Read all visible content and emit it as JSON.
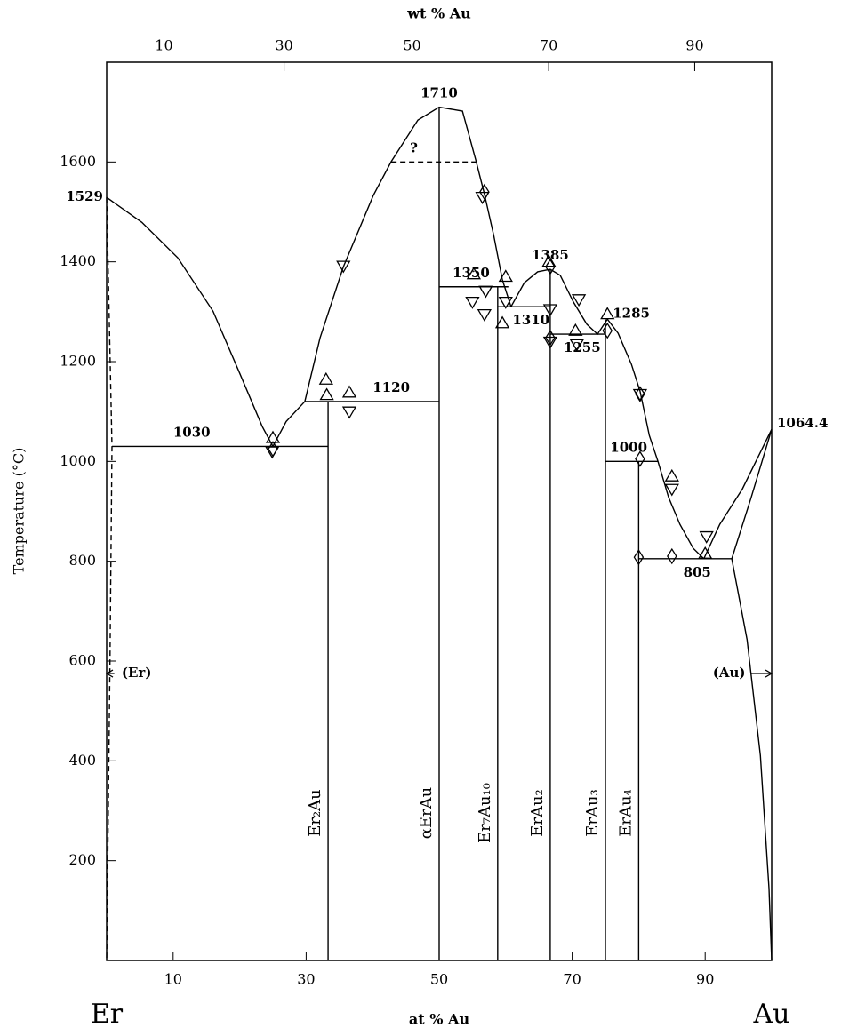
{
  "chart_data": {
    "type": "phase-diagram",
    "x_label": "at % Au",
    "x2_label": "wt % Au",
    "y_label": "Temperature (°C)",
    "left_element": "Er",
    "right_element": "Au",
    "xlim": [
      0,
      100
    ],
    "ylim": [
      0,
      1800
    ],
    "xticks": [
      10,
      30,
      50,
      70,
      90
    ],
    "x2ticks": [
      10,
      30,
      50,
      70,
      90
    ],
    "yticks": [
      200,
      400,
      600,
      800,
      1000,
      1200,
      1400,
      1600
    ],
    "color": "#000000",
    "series": [
      {
        "x": [
          0,
          5.3,
          10.7,
          16,
          20,
          23.4,
          25
        ],
        "values": [
          1529,
          1479,
          1408,
          1301,
          1177,
          1070,
          1030
        ]
      },
      {
        "x": [
          25,
          27,
          29.8
        ],
        "values": [
          1030,
          1080,
          1120
        ]
      },
      {
        "x": [
          29.8,
          32.1,
          35.6,
          40.1,
          42.8,
          46.8,
          50,
          53.5,
          55.5,
          56.8,
          58.2,
          59.5,
          60.8
        ],
        "values": [
          1120,
          1248,
          1390,
          1533,
          1601,
          1684,
          1710,
          1702,
          1604,
          1536,
          1453,
          1364,
          1310
        ]
      },
      {
        "x": [
          60.8,
          62.8,
          64.8,
          66.7,
          68.2,
          70.2,
          72.2,
          73.8,
          75.3,
          76.9,
          78.9,
          80.2,
          81.6,
          82.9,
          84.5,
          86.2,
          88.2,
          89.8
        ],
        "values": [
          1310,
          1358,
          1380,
          1385,
          1373,
          1319,
          1275,
          1255,
          1285,
          1257,
          1195,
          1141,
          1052,
          1000,
          928,
          874,
          826,
          805
        ]
      },
      {
        "x": [
          89.8,
          92.2,
          95.6,
          100
        ],
        "values": [
          805,
          874,
          945,
          1064.4
        ]
      },
      {
        "x": [
          94,
          96.9,
          100
        ],
        "values": [
          805,
          927,
          1064.4
        ]
      },
      {
        "x": [
          94,
          96.3,
          98.3,
          99.6,
          100
        ],
        "values": [
          805,
          643,
          411,
          144,
          0
        ]
      },
      {
        "x": [
          0,
          0.8,
          0.5,
          0
        ],
        "values": [
          1529,
          1030,
          600,
          0
        ],
        "style": "dashed"
      },
      {
        "x": [
          42.8,
          55.5
        ],
        "values": [
          1600,
          1600
        ],
        "style": "dashed"
      },
      {
        "x": [
          0.8,
          33.3
        ],
        "values": [
          1030,
          1030
        ]
      },
      {
        "x": [
          29.8,
          50
        ],
        "values": [
          1120,
          1120
        ]
      },
      {
        "x": [
          50,
          60.4
        ],
        "values": [
          1350,
          1350
        ]
      },
      {
        "x": [
          58.8,
          66.7
        ],
        "values": [
          1310,
          1310
        ]
      },
      {
        "x": [
          66.7,
          75
        ],
        "values": [
          1255,
          1255
        ]
      },
      {
        "x": [
          75,
          82.9
        ],
        "values": [
          1000,
          1000
        ]
      },
      {
        "x": [
          80,
          94
        ],
        "values": [
          805,
          805
        ]
      }
    ],
    "compounds": [
      {
        "name": "Er₂Au",
        "x": 33.3,
        "top": 1120
      },
      {
        "name": "αErAu",
        "x": 50,
        "top": 1710
      },
      {
        "name": "Er₇Au₁₀",
        "x": 58.8,
        "top": 1350
      },
      {
        "name": "ErAu₂",
        "x": 66.7,
        "top": 1385
      },
      {
        "name": "ErAu₃",
        "x": 75,
        "top": 1285
      },
      {
        "name": "ErAu₄",
        "x": 80,
        "top": 1000
      }
    ],
    "markers": [
      {
        "marker": "triangle-up",
        "x": [
          25,
          33,
          33.1,
          36.5,
          55.2,
          60,
          59.5,
          66.5,
          70.5,
          75.3,
          90,
          85
        ],
        "values": [
          1047,
          1164,
          1133,
          1138,
          1375,
          1370,
          1277,
          1400,
          1262,
          1295,
          815,
          970
        ]
      },
      {
        "marker": "triangle-down",
        "x": [
          24.9,
          35.6,
          36.5,
          55,
          56.8,
          57,
          66.7,
          70.7,
          71,
          80.2,
          85,
          90.2,
          66.7,
          60,
          56.5
        ],
        "values": [
          1020,
          1392,
          1100,
          1320,
          1295,
          1342,
          1305,
          1235,
          1325,
          1135,
          945,
          850,
          1240,
          1320,
          1530
        ]
      },
      {
        "marker": "diamond",
        "x": [
          25,
          56.8,
          66.7,
          66.7,
          75.3,
          80.2,
          80,
          85,
          80.2
        ],
        "values": [
          1025,
          1540,
          1390,
          1248,
          1262,
          1005,
          808,
          810,
          1135
        ]
      }
    ],
    "annotations": [
      {
        "text": "1529",
        "x": 0,
        "y": 1529,
        "anchor": "left"
      },
      {
        "text": "1030",
        "x": 12.8,
        "y": 1030,
        "anchor": "above"
      },
      {
        "text": "1120",
        "x": 42.8,
        "y": 1120,
        "anchor": "above"
      },
      {
        "text": "1710",
        "x": 50,
        "y": 1710,
        "anchor": "above"
      },
      {
        "text": "?",
        "x": 46.2,
        "y": 1600,
        "anchor": "above"
      },
      {
        "text": "1350",
        "x": 54.8,
        "y": 1350,
        "anchor": "above"
      },
      {
        "text": "1385",
        "x": 66.7,
        "y": 1385,
        "anchor": "above"
      },
      {
        "text": "1310",
        "x": 63.8,
        "y": 1310,
        "anchor": "below"
      },
      {
        "text": "1285",
        "x": 75.3,
        "y": 1285,
        "anchor": "right"
      },
      {
        "text": "1255",
        "x": 71.5,
        "y": 1255,
        "anchor": "below"
      },
      {
        "text": "1000",
        "x": 78.5,
        "y": 1000,
        "anchor": "above"
      },
      {
        "text": "805",
        "x": 88.8,
        "y": 805,
        "anchor": "below"
      },
      {
        "text": "1064.4",
        "x": 100,
        "y": 1064.4,
        "anchor": "right"
      },
      {
        "text": "(Er)",
        "x": 4.5,
        "y": 575,
        "arrow": "left"
      },
      {
        "text": "(Au)",
        "x": 93.6,
        "y": 575,
        "arrow": "right"
      }
    ]
  }
}
